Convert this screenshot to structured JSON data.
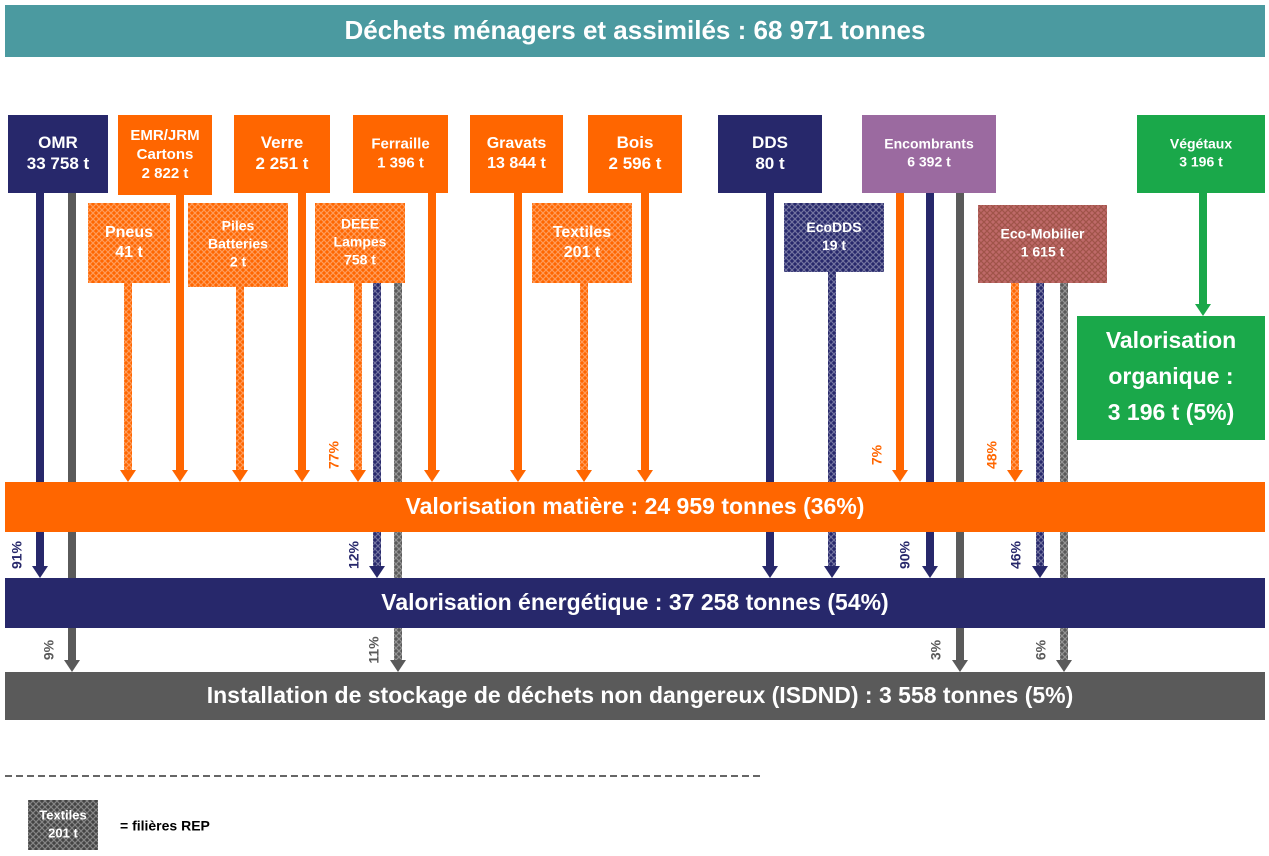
{
  "title": "Déchets ménagers et assimilés : 68 971 tonnes",
  "nodes": [
    {
      "lines": [
        "OMR",
        "33 758 t"
      ]
    },
    {
      "lines": [
        "EMR/JRM",
        "Cartons",
        "2 822 t"
      ]
    },
    {
      "lines": [
        "Verre",
        "2 251 t"
      ]
    },
    {
      "lines": [
        "Ferraille",
        "1 396 t"
      ]
    },
    {
      "lines": [
        "Gravats",
        "13 844 t"
      ]
    },
    {
      "lines": [
        "Bois",
        "2 596 t"
      ]
    },
    {
      "lines": [
        "DDS",
        "80 t"
      ]
    },
    {
      "lines": [
        "Encombrants",
        "6 392 t"
      ]
    },
    {
      "lines": [
        "Végétaux",
        "3 196 t"
      ]
    },
    {
      "lines": [
        "Pneus",
        "41 t"
      ]
    },
    {
      "lines": [
        "Piles",
        "Batteries",
        "2 t"
      ]
    },
    {
      "lines": [
        "DEEE",
        "Lampes",
        "758 t"
      ]
    },
    {
      "lines": [
        "Textiles",
        "201 t"
      ]
    },
    {
      "lines": [
        "EcoDDS",
        "19 t"
      ]
    },
    {
      "lines": [
        "Eco-Mobilier",
        "1 615 t"
      ]
    }
  ],
  "percentages": [
    "91%",
    "9%",
    "77%",
    "12%",
    "11%",
    "7%",
    "90%",
    "3%",
    "48%",
    "46%",
    "6%"
  ],
  "outcomes": {
    "matiere": "Valorisation matière : 24 959 tonnes (36%)",
    "energetique": "Valorisation énergétique : 37 258 tonnes (54%)",
    "isdnd": "Installation de stockage de déchets non dangereux (ISDND) : 3 558 tonnes (5%)",
    "organique": [
      "Valorisation",
      "organique :",
      "3 196 t (5%)"
    ]
  },
  "legend": {
    "box": [
      "Textiles",
      "201 t"
    ],
    "text": "= filières REP"
  }
}
